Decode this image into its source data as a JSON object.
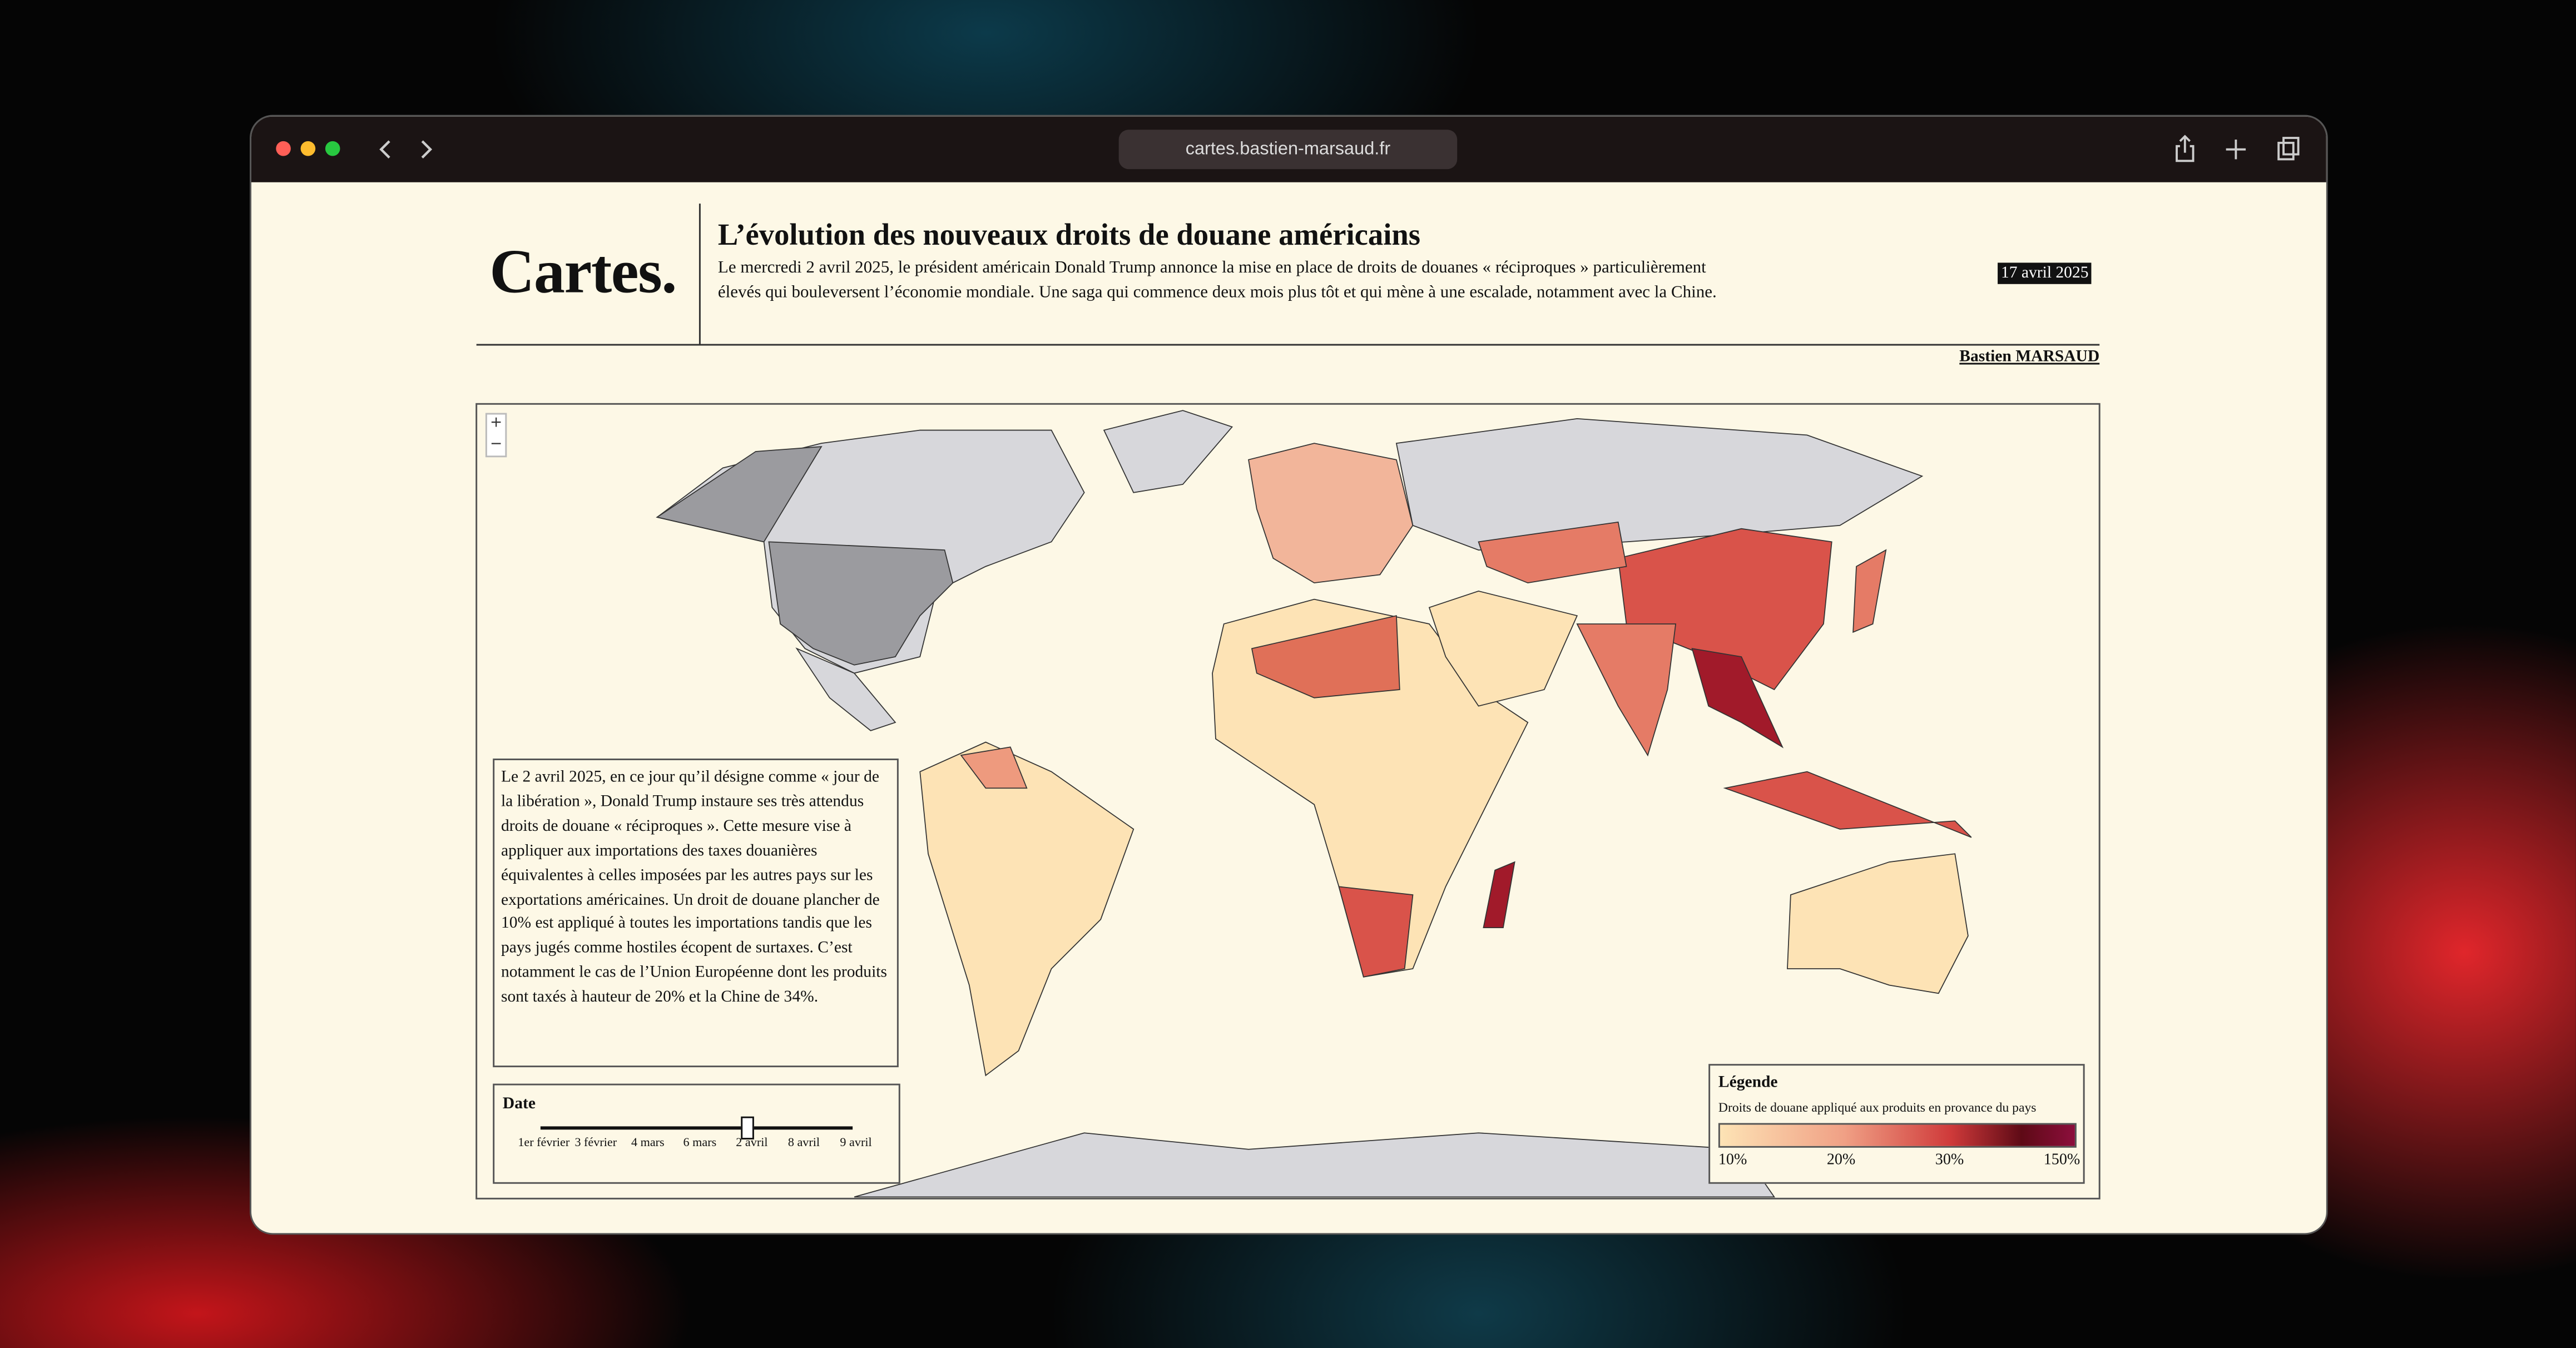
{
  "browser": {
    "url": "cartes.bastien-marsaud.fr"
  },
  "header": {
    "logo": "Cartes.",
    "title": "L’évolution des nouveaux droits de douane américains",
    "subtitle": "Le mercredi 2 avril 2025, le président américain Donald Trump annonce la mise en place de droits de douanes « réciproques » particulièrement élevés qui bouleversent l’économie mondiale. Une saga qui commence deux mois plus tôt et qui mène à une escalade, notamment avec la Chine.",
    "date": "17 avril 2025",
    "author": "Bastien MARSAUD"
  },
  "map": {
    "zoom_in": "+",
    "zoom_out": "−"
  },
  "intro": "Le 2 avril 2025, en ce jour qu’il désigne comme « jour de la libération », Donald Trump instaure ses très attendus droits de douane « réciproques ». Cette mesure vise à appliquer aux importations des taxes douanières équivalentes à celles imposées par les autres pays sur les exportations américaines. Un droit de douane plancher de 10% est appliqué à toutes les importations tandis que les pays jugés comme hostiles écopent de surtaxes. C’est notamment le cas de l’Union Européenne dont les produits sont taxés à hauteur de 20% et la Chine de 34%.",
  "slider": {
    "label": "Date",
    "ticks": [
      "1er février",
      "3 février",
      "4 mars",
      "6 mars",
      "2 avril",
      "8 avril",
      "9 avril"
    ]
  },
  "legend": {
    "title": "Légende",
    "subtitle": "Droits de douane appliqué aux produits en provance du pays",
    "labels": [
      "10%",
      "20%",
      "30%",
      "150%"
    ]
  }
}
